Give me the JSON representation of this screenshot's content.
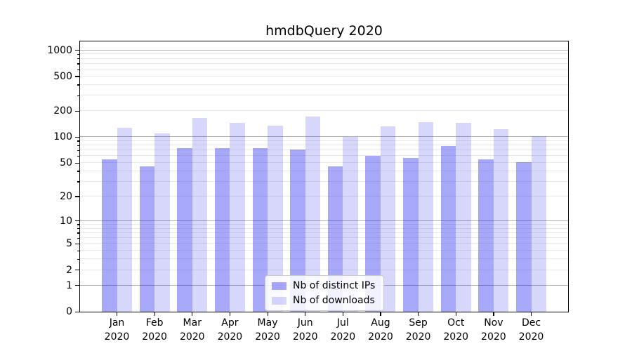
{
  "chart_data": {
    "type": "bar",
    "title": "hmdbQuery 2020",
    "categories": [
      "Jan 2020",
      "Feb 2020",
      "Mar 2020",
      "Apr 2020",
      "May 2020",
      "Jun 2020",
      "Jul 2020",
      "Aug 2020",
      "Sep 2020",
      "Oct 2020",
      "Nov 2020",
      "Dec 2020"
    ],
    "series": [
      {
        "name": "Nb of distinct IPs",
        "color": "rgba(20,20,235,0.37)",
        "values": [
          55,
          46,
          74,
          74,
          74,
          72,
          46,
          60,
          57,
          79,
          55,
          51
        ]
      },
      {
        "name": "Nb of downloads",
        "color": "rgba(20,20,235,0.17)",
        "values": [
          129,
          110,
          166,
          146,
          136,
          172,
          101,
          134,
          150,
          147,
          123,
          103
        ]
      }
    ],
    "xlabel": "",
    "ylabel": "",
    "yscale": "log1p",
    "ylim": [
      0,
      1266
    ],
    "yticks": [
      0,
      1,
      2,
      5,
      10,
      20,
      50,
      100,
      200,
      500,
      1000
    ],
    "major_grid_values": [
      1,
      10,
      100,
      1000
    ],
    "minor_grid_bases": [
      1,
      10,
      100
    ],
    "grid": "both",
    "legend_position": "lower center",
    "colors": {
      "major_grid": "#b2b2b2",
      "minor_grid": "#e9e9e9",
      "axis": "#000000",
      "background": "#ffffff"
    }
  }
}
